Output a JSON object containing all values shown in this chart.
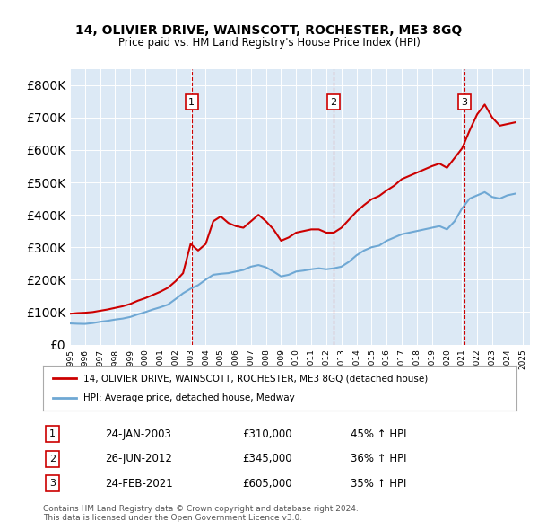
{
  "title": "14, OLIVIER DRIVE, WAINSCOTT, ROCHESTER, ME3 8GQ",
  "subtitle": "Price paid vs. HM Land Registry's House Price Index (HPI)",
  "background_color": "#dce9f5",
  "plot_bg_color": "#dce9f5",
  "legend_line1": "14, OLIVIER DRIVE, WAINSCOTT, ROCHESTER, ME3 8GQ (detached house)",
  "legend_line2": "HPI: Average price, detached house, Medway",
  "footer1": "Contains HM Land Registry data © Crown copyright and database right 2024.",
  "footer2": "This data is licensed under the Open Government Licence v3.0.",
  "transactions": [
    {
      "num": 1,
      "date": "24-JAN-2003",
      "price": "£310,000",
      "change": "45% ↑ HPI",
      "year": 2003.07
    },
    {
      "num": 2,
      "date": "26-JUN-2012",
      "price": "£345,000",
      "change": "36% ↑ HPI",
      "year": 2012.49
    },
    {
      "num": 3,
      "date": "24-FEB-2021",
      "price": "£605,000",
      "change": "35% ↑ HPI",
      "year": 2021.15
    }
  ],
  "hpi_line_color": "#6fa8d4",
  "price_line_color": "#cc0000",
  "ylim": [
    0,
    850000
  ],
  "xlim_start": 1995.0,
  "xlim_end": 2025.5,
  "hpi_data": {
    "years": [
      1995.0,
      1995.5,
      1996.0,
      1996.5,
      1997.0,
      1997.5,
      1998.0,
      1998.5,
      1999.0,
      1999.5,
      2000.0,
      2000.5,
      2001.0,
      2001.5,
      2002.0,
      2002.5,
      2003.0,
      2003.5,
      2004.0,
      2004.5,
      2005.0,
      2005.5,
      2006.0,
      2006.5,
      2007.0,
      2007.5,
      2008.0,
      2008.5,
      2009.0,
      2009.5,
      2010.0,
      2010.5,
      2011.0,
      2011.5,
      2012.0,
      2012.5,
      2013.0,
      2013.5,
      2014.0,
      2014.5,
      2015.0,
      2015.5,
      2016.0,
      2016.5,
      2017.0,
      2017.5,
      2018.0,
      2018.5,
      2019.0,
      2019.5,
      2020.0,
      2020.5,
      2021.0,
      2021.5,
      2022.0,
      2022.5,
      2023.0,
      2023.5,
      2024.0,
      2024.5
    ],
    "values": [
      65000,
      64000,
      63500,
      66000,
      70000,
      73000,
      77000,
      80000,
      85000,
      93000,
      100000,
      108000,
      115000,
      123000,
      140000,
      158000,
      172000,
      183000,
      200000,
      215000,
      218000,
      220000,
      225000,
      230000,
      240000,
      245000,
      238000,
      225000,
      210000,
      215000,
      225000,
      228000,
      232000,
      235000,
      232000,
      235000,
      240000,
      255000,
      275000,
      290000,
      300000,
      305000,
      320000,
      330000,
      340000,
      345000,
      350000,
      355000,
      360000,
      365000,
      355000,
      380000,
      420000,
      450000,
      460000,
      470000,
      455000,
      450000,
      460000,
      465000
    ]
  },
  "price_data": {
    "years": [
      1995.0,
      1995.5,
      1996.0,
      1996.5,
      1997.0,
      1997.5,
      1998.0,
      1998.5,
      1999.0,
      1999.5,
      2000.0,
      2000.5,
      2001.0,
      2001.5,
      2002.0,
      2002.5,
      2003.0,
      2003.5,
      2004.0,
      2004.5,
      2005.0,
      2005.5,
      2006.0,
      2006.5,
      2007.0,
      2007.5,
      2008.0,
      2008.5,
      2009.0,
      2009.5,
      2010.0,
      2010.5,
      2011.0,
      2011.5,
      2012.0,
      2012.5,
      2013.0,
      2013.5,
      2014.0,
      2014.5,
      2015.0,
      2015.5,
      2016.0,
      2016.5,
      2017.0,
      2017.5,
      2018.0,
      2018.5,
      2019.0,
      2019.5,
      2020.0,
      2020.5,
      2021.0,
      2021.5,
      2022.0,
      2022.5,
      2023.0,
      2023.5,
      2024.0,
      2024.5
    ],
    "values": [
      95000,
      97000,
      98000,
      100000,
      104000,
      108000,
      113000,
      118000,
      125000,
      135000,
      143000,
      153000,
      163000,
      175000,
      195000,
      220000,
      310000,
      290000,
      310000,
      380000,
      395000,
      375000,
      365000,
      360000,
      380000,
      400000,
      380000,
      355000,
      320000,
      330000,
      345000,
      350000,
      355000,
      355000,
      345000,
      345000,
      360000,
      385000,
      410000,
      430000,
      448000,
      458000,
      475000,
      490000,
      510000,
      520000,
      530000,
      540000,
      550000,
      558000,
      545000,
      575000,
      605000,
      660000,
      710000,
      740000,
      700000,
      675000,
      680000,
      685000
    ]
  }
}
